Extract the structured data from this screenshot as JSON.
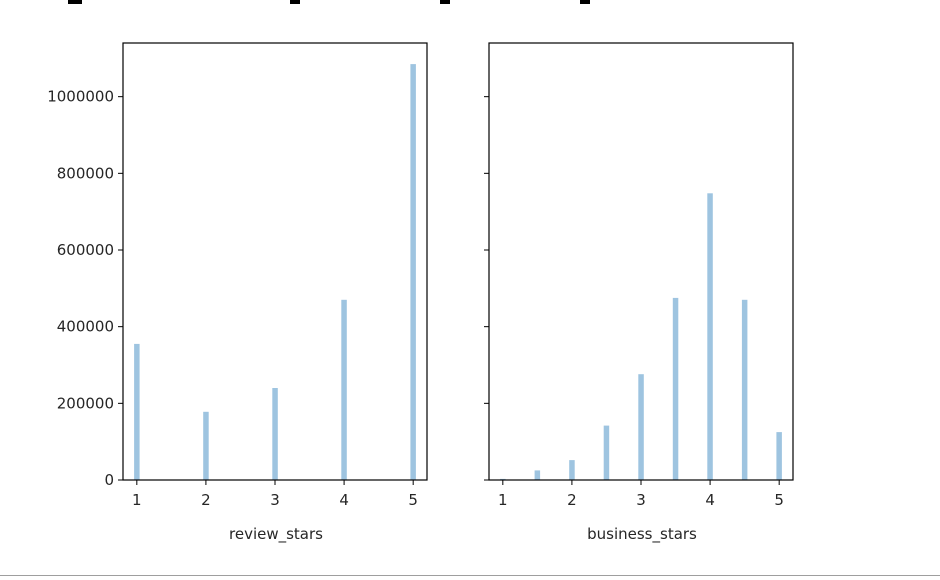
{
  "chart_data": [
    {
      "type": "bar",
      "xlabel": "review_stars",
      "ylabel": "",
      "x_ticks": [
        "1",
        "2",
        "3",
        "4",
        "5"
      ],
      "y_ticks": [
        "0",
        "200000",
        "400000",
        "600000",
        "800000",
        "1000000"
      ],
      "ylim": [
        0,
        1140000
      ],
      "xlim": [
        0.8,
        5.2
      ],
      "x": [
        1,
        2,
        3,
        4,
        5
      ],
      "values": [
        355000,
        178000,
        240000,
        470000,
        1085000
      ],
      "bar_color": "#9ec4e0"
    },
    {
      "type": "bar",
      "xlabel": "business_stars",
      "ylabel": "",
      "x_ticks": [
        "1",
        "2",
        "3",
        "4",
        "5"
      ],
      "y_ticks": [
        "0",
        "200000",
        "400000",
        "600000",
        "800000",
        "1000000"
      ],
      "ylim": [
        0,
        1140000
      ],
      "xlim": [
        0.8,
        5.2
      ],
      "shared_y": true,
      "x": [
        1,
        1.5,
        2,
        2.5,
        3,
        3.5,
        4,
        4.5,
        5
      ],
      "values": [
        3000,
        25000,
        52000,
        142000,
        276000,
        475000,
        748000,
        470000,
        125000
      ],
      "bar_color": "#9ec4e0"
    }
  ]
}
